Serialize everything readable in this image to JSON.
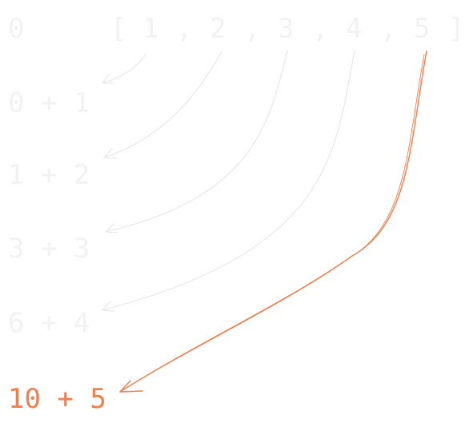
{
  "colors": {
    "faded": "#f2f2f2",
    "faded_arrow": "#e9e9e9",
    "highlight": "#f07f4f"
  },
  "header": {
    "initial": "0",
    "open_bracket": "[",
    "close_bracket": "]",
    "separator": ",",
    "items": [
      "1",
      "2",
      "3",
      "4",
      "5"
    ]
  },
  "steps": [
    {
      "expression": "0 + 1",
      "highlighted": false
    },
    {
      "expression": "1 + 2",
      "highlighted": false
    },
    {
      "expression": "3 + 3",
      "highlighted": false
    },
    {
      "expression": "6 + 4",
      "highlighted": false
    },
    {
      "expression": "10 + 5",
      "highlighted": true
    }
  ]
}
